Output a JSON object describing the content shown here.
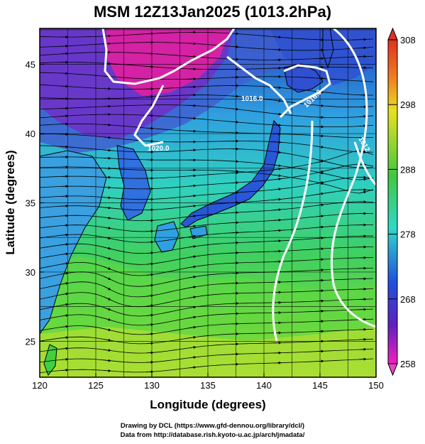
{
  "title": "MSM 12Z13Jan2025 (1013.2hPa)",
  "xlabel": "Longitude (degrees)",
  "ylabel": "Latitude  (degrees)",
  "x_ticks": [
    "120",
    "125",
    "130",
    "135",
    "140",
    "145",
    "150"
  ],
  "y_ticks": [
    "25",
    "30",
    "35",
    "40",
    "45"
  ],
  "colorbar_ticks": [
    "308",
    "298",
    "288",
    "278",
    "268",
    "258"
  ],
  "contour_labels": [
    "1016.0",
    "1016.0",
    "1020.0",
    "1012"
  ],
  "credits": {
    "line1": "Drawing by DCL (https://www.gfd-dennou.org/library/dcl/)",
    "line2": "Data from http://database.rish.kyoto-u.ac.jp/arch/jmadata/"
  },
  "map_data": {
    "lon_range": [
      120,
      150
    ],
    "lat_range": [
      22.4,
      47.6
    ],
    "colorbar_range": [
      258,
      308
    ],
    "colors": {
      "cold": "#e020a0",
      "cool": "#3050d0",
      "mid": "#30d0c0",
      "warm": "#40d040",
      "hot": "#d8e020",
      "contour": "#ffffff",
      "streamline": "#000000"
    }
  }
}
